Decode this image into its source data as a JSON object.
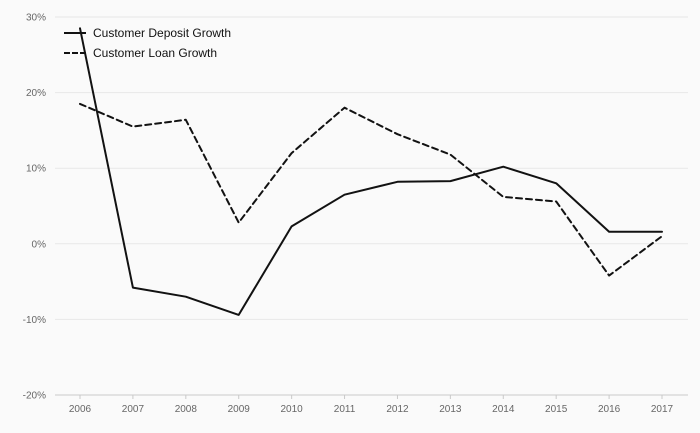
{
  "chart": {
    "background": "#fafafa",
    "grid_color": "#e7e7e7",
    "axis_color": "#c9c9c9",
    "tick_label_color": "#666666",
    "line_color": "#121212"
  },
  "chart_data": {
    "type": "line",
    "x": [
      "2006",
      "2007",
      "2008",
      "2009",
      "2010",
      "2011",
      "2012",
      "2013",
      "2014",
      "2015",
      "2016",
      "2017"
    ],
    "series": [
      {
        "name": "Customer Deposit Growth",
        "line_style": "solid",
        "values": [
          28.5,
          -5.8,
          -7.0,
          -9.4,
          2.3,
          6.5,
          8.2,
          8.3,
          10.2,
          8.0,
          1.6,
          1.6
        ]
      },
      {
        "name": "Customer Loan Growth",
        "line_style": "dashed",
        "values": [
          18.5,
          15.5,
          16.4,
          2.8,
          12.0,
          18.0,
          14.5,
          11.8,
          6.2,
          5.6,
          -4.2,
          1.0
        ]
      }
    ],
    "ylim": [
      -20,
      30
    ],
    "yticks": [
      30,
      20,
      10,
      0,
      -10,
      -20
    ],
    "ytick_format": "percent",
    "xlabel": "",
    "ylabel": "",
    "title": "",
    "grid": true,
    "legend_position": "top-left"
  }
}
